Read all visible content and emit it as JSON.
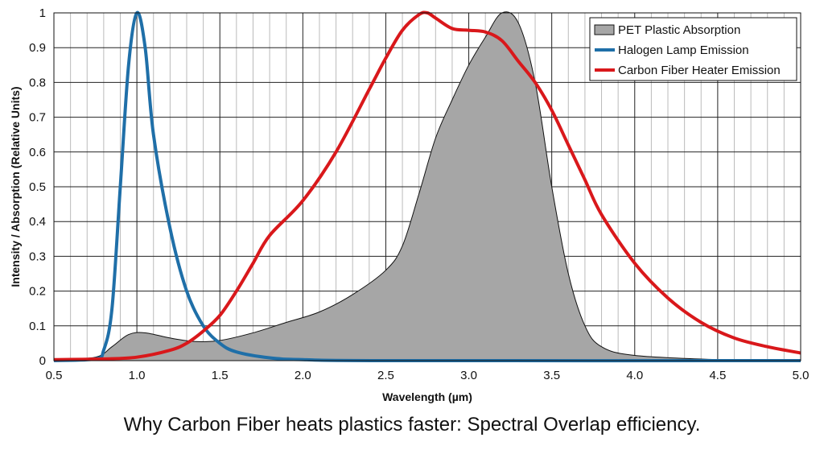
{
  "chart_data": {
    "type": "line",
    "title": "",
    "xlabel": "Wavelength (µm)",
    "ylabel": "Intensity / Absorption (Relative Units)",
    "xlim": [
      0.5,
      5.0
    ],
    "ylim": [
      0,
      1
    ],
    "grid": true,
    "legend_position": "top-right",
    "x_ticks": [
      "0.5",
      "1.0",
      "1.5",
      "2.0",
      "2.5",
      "3.0",
      "3.5",
      "4.0",
      "4.5",
      "5.0"
    ],
    "y_ticks": [
      "0",
      "0.1",
      "0.2",
      "0.3",
      "0.4",
      "0.5",
      "0.6",
      "0.7",
      "0.8",
      "0.9",
      "1"
    ],
    "series": [
      {
        "name": "PET Plastic Absorption",
        "style": "area",
        "color": "#a6a6a6",
        "x": [
          0.5,
          0.75,
          0.85,
          0.95,
          1.05,
          1.2,
          1.35,
          1.5,
          1.7,
          1.9,
          2.1,
          2.3,
          2.5,
          2.6,
          2.7,
          2.8,
          2.9,
          3.0,
          3.1,
          3.2,
          3.3,
          3.4,
          3.5,
          3.6,
          3.7,
          3.8,
          4.0,
          4.5,
          5.0
        ],
        "y": [
          0.003,
          0.01,
          0.04,
          0.075,
          0.08,
          0.065,
          0.055,
          0.058,
          0.08,
          0.11,
          0.14,
          0.19,
          0.26,
          0.33,
          0.48,
          0.64,
          0.75,
          0.85,
          0.93,
          1.0,
          0.97,
          0.8,
          0.5,
          0.25,
          0.1,
          0.04,
          0.015,
          0.003,
          0.0
        ]
      },
      {
        "name": "Halogen Lamp Emission",
        "style": "line",
        "color": "#1f6fa8",
        "x": [
          0.5,
          0.75,
          0.8,
          0.85,
          0.9,
          0.95,
          1.0,
          1.05,
          1.1,
          1.2,
          1.3,
          1.4,
          1.5,
          1.6,
          1.8,
          2.0,
          2.5,
          5.0
        ],
        "y": [
          0.0,
          0.005,
          0.03,
          0.15,
          0.5,
          0.85,
          1.0,
          0.9,
          0.65,
          0.38,
          0.2,
          0.1,
          0.05,
          0.025,
          0.008,
          0.003,
          0.0,
          0.0
        ]
      },
      {
        "name": "Carbon Fiber Heater Emission",
        "style": "line",
        "color": "#d9181b",
        "x": [
          0.5,
          0.8,
          1.0,
          1.2,
          1.3,
          1.4,
          1.5,
          1.6,
          1.7,
          1.8,
          2.0,
          2.2,
          2.4,
          2.5,
          2.6,
          2.7,
          2.75,
          2.8,
          2.9,
          3.0,
          3.1,
          3.2,
          3.3,
          3.4,
          3.5,
          3.6,
          3.7,
          3.8,
          4.0,
          4.2,
          4.4,
          4.6,
          4.8,
          5.0
        ],
        "y": [
          0.003,
          0.005,
          0.01,
          0.03,
          0.05,
          0.085,
          0.13,
          0.2,
          0.28,
          0.36,
          0.46,
          0.6,
          0.78,
          0.87,
          0.95,
          0.995,
          1.0,
          0.985,
          0.955,
          0.95,
          0.945,
          0.92,
          0.86,
          0.8,
          0.72,
          0.62,
          0.52,
          0.42,
          0.28,
          0.18,
          0.11,
          0.065,
          0.04,
          0.022
        ]
      }
    ]
  },
  "caption": "Why Carbon Fiber heats plastics faster: Spectral Overlap efficiency."
}
